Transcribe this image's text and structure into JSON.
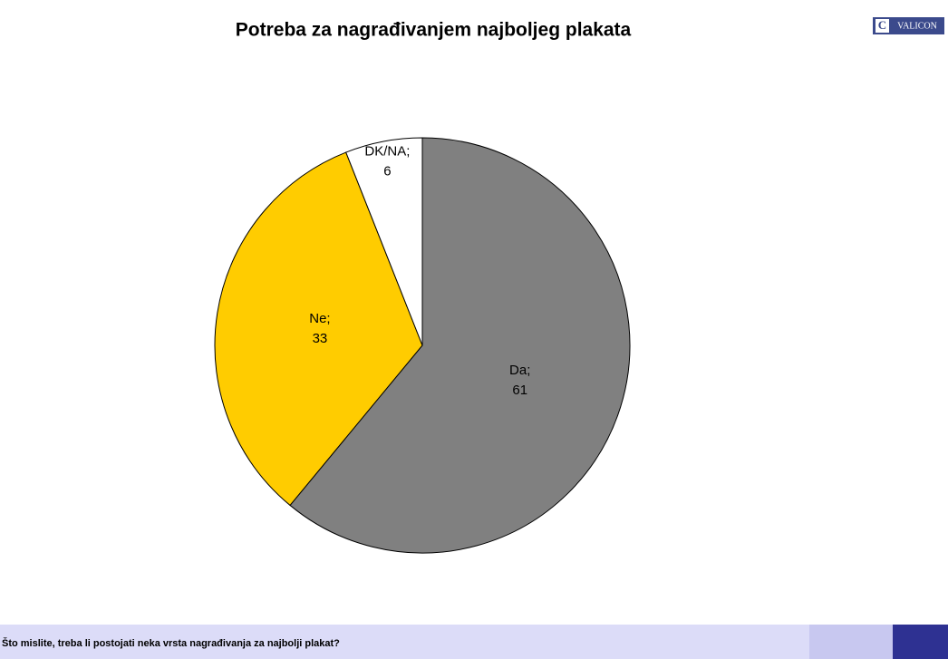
{
  "chart_data": {
    "type": "pie",
    "title": "Potreba za nagrađivanjem najboljeg plakata",
    "categories": [
      "Da;",
      "Ne;",
      "DK/NA;"
    ],
    "values": [
      61,
      33,
      6
    ],
    "colors": [
      "#808080",
      "#ffcc00",
      "#ffffff"
    ]
  },
  "logo": "VALICON",
  "question": "Što mislite, treba li postojati neka vrsta nagrađivanja za najbolji plakat?"
}
